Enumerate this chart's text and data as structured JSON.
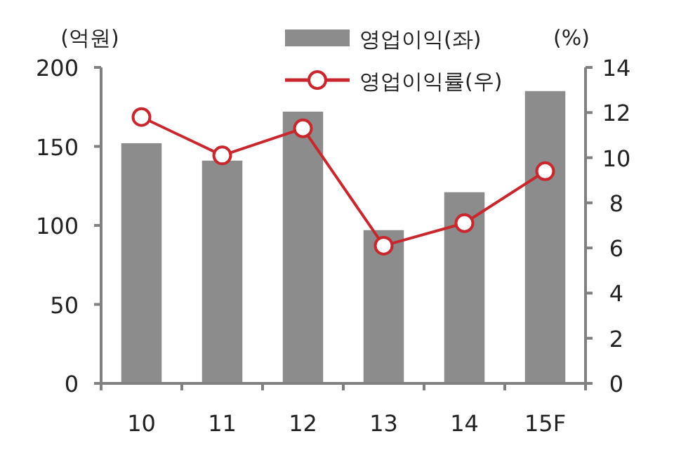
{
  "chart_data": {
    "type": "bar",
    "ylabel": "(억원)",
    "y2label": "(%)",
    "categories": [
      "10",
      "11",
      "12",
      "13",
      "14",
      "15F"
    ],
    "series": [
      {
        "name": "영업이익(좌)",
        "color": "#8c8c8c",
        "values": [
          152,
          141,
          172,
          97,
          121,
          185
        ]
      },
      {
        "name": "영업이익률(우)",
        "type": "line",
        "axis": "y2",
        "color": "#c8282d",
        "marker": "circle",
        "values": [
          11.8,
          10.1,
          11.3,
          6.1,
          7.1,
          9.4
        ]
      }
    ],
    "ylim": [
      0,
      200
    ],
    "yticks": [
      0,
      50,
      100,
      150,
      200
    ],
    "y2lim": [
      0,
      14
    ],
    "y2ticks": [
      0,
      2,
      4,
      6,
      8,
      10,
      12,
      14
    ],
    "grid": false,
    "legend": "top"
  }
}
